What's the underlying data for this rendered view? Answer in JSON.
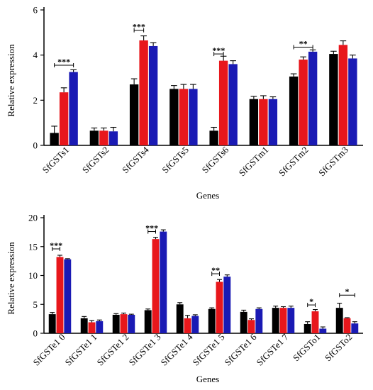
{
  "chart_data": [
    {
      "type": "bar",
      "xlabel": "Genes",
      "ylabel": "Relative expression",
      "ylim": [
        0,
        6
      ],
      "yticks": [
        0,
        2,
        4,
        6
      ],
      "categories": [
        "SfGSTs1",
        "SfGSTs2",
        "SfGSTs4",
        "SfGSTs5",
        "SfGSTs6",
        "SfGSTm1",
        "SfGSTm2",
        "SfGSTm3"
      ],
      "series": [
        {
          "color": "#000000",
          "values": [
            0.55,
            0.65,
            2.7,
            2.5,
            0.65,
            2.05,
            3.05,
            4.05
          ],
          "errors": [
            0.3,
            0.12,
            0.25,
            0.15,
            0.15,
            0.12,
            0.12,
            0.12
          ]
        },
        {
          "color": "#e8171c",
          "values": [
            2.35,
            0.65,
            4.65,
            2.5,
            3.75,
            2.05,
            3.8,
            4.45
          ],
          "errors": [
            0.2,
            0.12,
            0.2,
            0.2,
            0.2,
            0.15,
            0.12,
            0.18
          ]
        },
        {
          "color": "#1a1ab4",
          "values": [
            3.25,
            0.62,
            4.4,
            2.5,
            3.6,
            2.05,
            4.15,
            3.85
          ],
          "errors": [
            0.1,
            0.18,
            0.15,
            0.2,
            0.15,
            0.1,
            0.08,
            0.15
          ]
        }
      ],
      "significance": [
        {
          "category": 0,
          "from_series": 0,
          "to_series": 2,
          "y": 3.55,
          "label": "***"
        },
        {
          "category": 2,
          "from_series": 0,
          "to_series": 1,
          "y": 5.1,
          "label": "***"
        },
        {
          "category": 4,
          "from_series": 0,
          "to_series": 1,
          "y": 4.05,
          "label": "***"
        },
        {
          "category": 6,
          "from_series": 0,
          "to_series": 2,
          "y": 4.35,
          "label": "**"
        }
      ]
    },
    {
      "type": "bar",
      "xlabel": "Genes",
      "ylabel": "Relative expression",
      "ylim": [
        0,
        20
      ],
      "yticks": [
        0,
        5,
        10,
        15,
        20
      ],
      "categories": [
        "SfGSTe1 0",
        "SfGSTe1 1",
        "SfGSTe1 2",
        "SfGSTe1 3",
        "SfGSTe1 4",
        "SfGSTe1 5",
        "SfGSTe1 6",
        "SfGSTe1 7",
        "SfGSTo1",
        "SfGSTo2"
      ],
      "series": [
        {
          "color": "#000000",
          "values": [
            3.3,
            2.6,
            3.2,
            4.0,
            5.0,
            4.2,
            3.7,
            4.4,
            1.6,
            4.4
          ],
          "errors": [
            0.3,
            0.3,
            0.2,
            0.2,
            0.3,
            0.2,
            0.3,
            0.3,
            0.4,
            0.8
          ]
        },
        {
          "color": "#e8171c",
          "values": [
            13.2,
            1.9,
            3.3,
            16.3,
            2.6,
            8.9,
            2.3,
            4.4,
            3.8,
            2.6
          ],
          "errors": [
            0.3,
            0.3,
            0.2,
            0.3,
            0.5,
            0.4,
            0.2,
            0.2,
            0.3,
            0.1
          ]
        },
        {
          "color": "#1a1ab4",
          "values": [
            12.8,
            2.1,
            3.2,
            17.6,
            3.0,
            9.8,
            4.2,
            4.4,
            0.8,
            1.7
          ],
          "errors": [
            0.1,
            0.2,
            0.1,
            0.3,
            0.2,
            0.3,
            0.2,
            0.3,
            0.3,
            0.3
          ]
        }
      ],
      "significance": [
        {
          "category": 0,
          "from_series": 0,
          "to_series": 1,
          "y": 14.6,
          "label": "***"
        },
        {
          "category": 3,
          "from_series": 0,
          "to_series": 1,
          "y": 17.6,
          "label": "***"
        },
        {
          "category": 5,
          "from_series": 0,
          "to_series": 1,
          "y": 10.3,
          "label": "**"
        },
        {
          "category": 8,
          "from_series": 0,
          "to_series": 1,
          "y": 4.9,
          "label": "*"
        },
        {
          "category": 9,
          "from_series": 0,
          "to_series": 2,
          "y": 6.6,
          "label": "*"
        }
      ]
    }
  ]
}
